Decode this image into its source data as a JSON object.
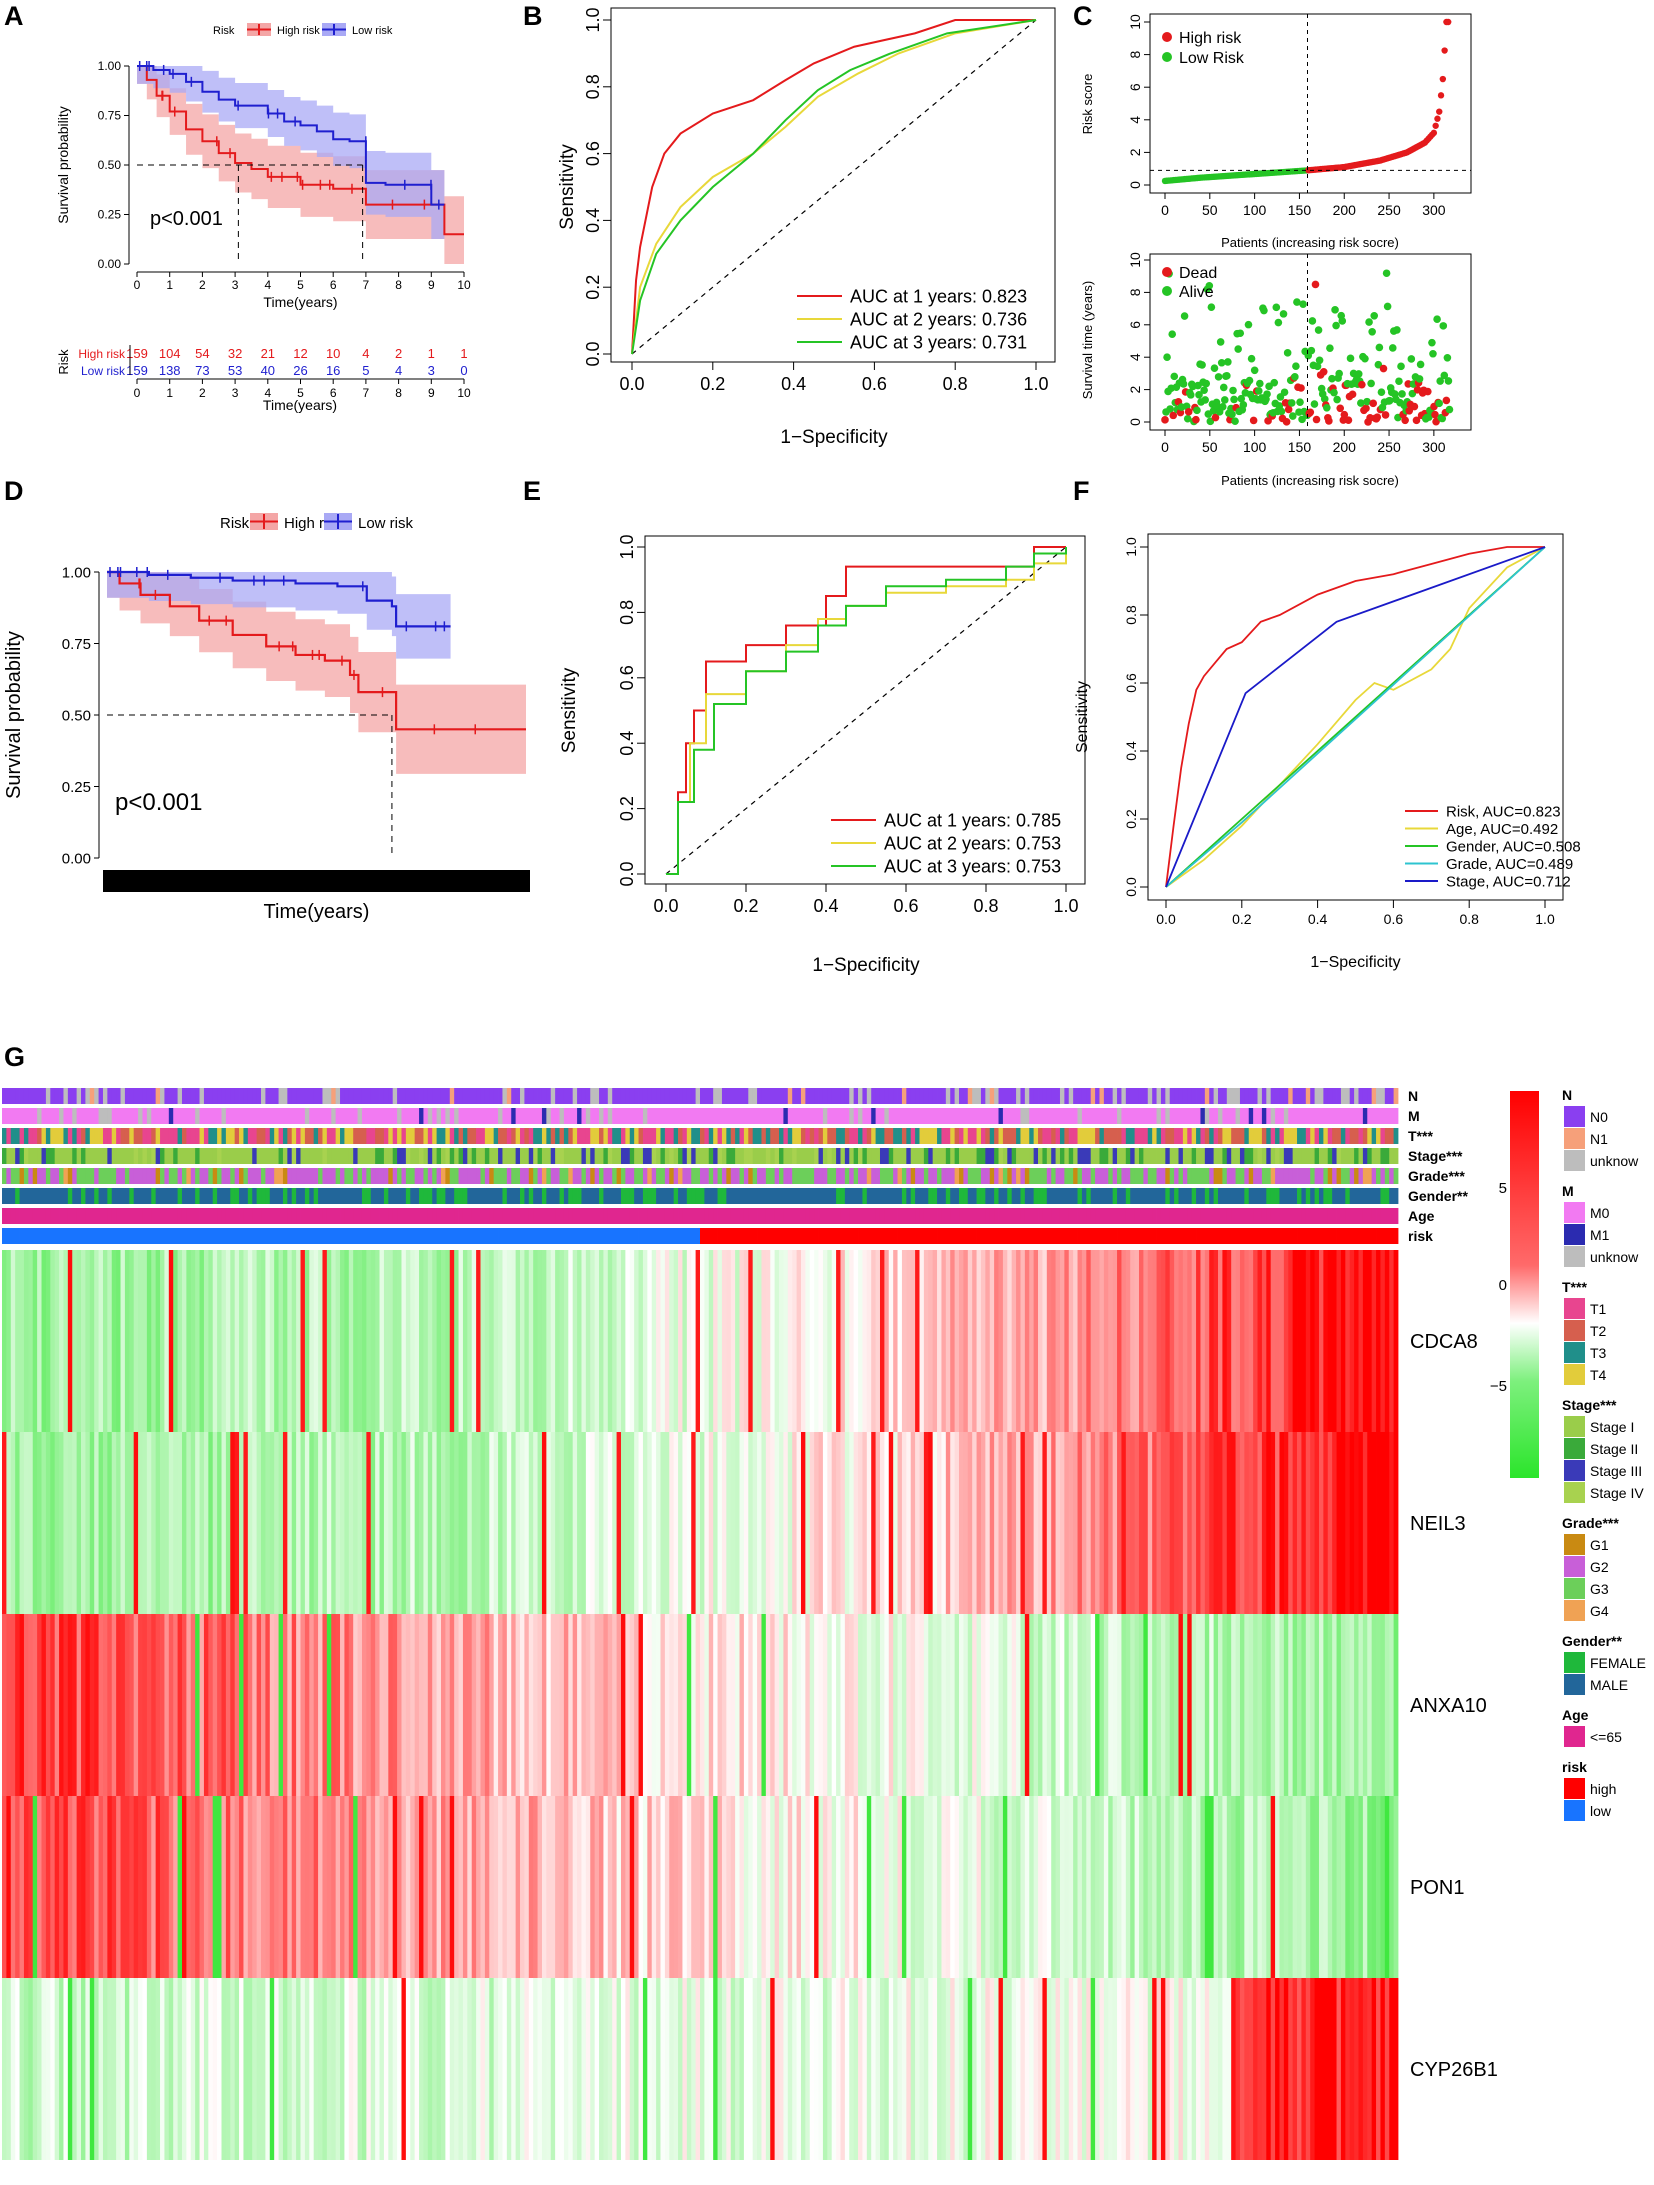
{
  "panels": {
    "A": "A",
    "B": "B",
    "C": "C",
    "D": "D",
    "E": "E",
    "F": "F",
    "G": "G"
  },
  "colors": {
    "high": "#e41a1c",
    "low": "#1f1fcf",
    "high_band": "#f4a6a6",
    "low_band": "#a9a9f5",
    "red": "#e41a1c",
    "yellow": "#e8d83a",
    "green": "#25c425",
    "cyan": "#2ec4d0",
    "blue": "#1a1ac8",
    "heat_high": "#ff0000",
    "heat_mid": "#ffffff",
    "heat_low": "#2be52b"
  },
  "chart_data": [
    {
      "id": "A",
      "type": "line",
      "subtype": "kaplan-meier",
      "legend_title": "Risk",
      "legend": [
        "High risk",
        "Low risk"
      ],
      "xlabel": "Time(years)",
      "ylabel": "Survival probability",
      "x_ticks": [
        "0",
        "1",
        "2",
        "3",
        "4",
        "5",
        "6",
        "7",
        "8",
        "9",
        "10"
      ],
      "y_ticks": [
        "0.00",
        "0.25",
        "0.50",
        "0.75",
        "1.00"
      ],
      "xlim": [
        0,
        10
      ],
      "ylim": [
        0,
        1
      ],
      "annotation": "p<0.001",
      "series": [
        {
          "name": "High risk",
          "x": [
            0,
            0.3,
            0.6,
            1,
            1.5,
            2,
            2.5,
            3,
            3.5,
            4,
            5,
            6,
            7,
            7.5,
            9,
            9.4,
            10
          ],
          "y": [
            1,
            0.93,
            0.85,
            0.77,
            0.68,
            0.62,
            0.56,
            0.51,
            0.48,
            0.44,
            0.4,
            0.38,
            0.3,
            0.3,
            0.3,
            0.15,
            0.15
          ]
        },
        {
          "name": "Low risk",
          "x": [
            0,
            0.5,
            1,
            1.5,
            2,
            2.5,
            3,
            4,
            4.5,
            5,
            5.5,
            6,
            6.5,
            7,
            7.6,
            9,
            9.4
          ],
          "y": [
            1,
            0.98,
            0.96,
            0.92,
            0.87,
            0.83,
            0.8,
            0.76,
            0.72,
            0.7,
            0.67,
            0.63,
            0.62,
            0.41,
            0.4,
            0.3,
            0.3
          ]
        }
      ],
      "median_lines": {
        "y": 0.5,
        "x": [
          3.1,
          6.9
        ]
      },
      "risk_table": {
        "title": "Risk",
        "xlabel": "Time(years)",
        "x_ticks": [
          "0",
          "1",
          "2",
          "3",
          "4",
          "5",
          "6",
          "7",
          "8",
          "9",
          "10"
        ],
        "rows": [
          {
            "label": "High risk",
            "values": [
              "159",
              "104",
              "54",
              "32",
              "21",
              "12",
              "10",
              "4",
              "2",
              "1",
              "1"
            ]
          },
          {
            "label": "Low risk",
            "values": [
              "159",
              "138",
              "73",
              "53",
              "40",
              "26",
              "16",
              "5",
              "4",
              "3",
              "0"
            ]
          }
        ]
      }
    },
    {
      "id": "B",
      "type": "line",
      "subtype": "roc",
      "xlabel": "1−Specificity",
      "ylabel": "Sensitivity",
      "x_ticks": [
        "0.0",
        "0.2",
        "0.4",
        "0.6",
        "0.8",
        "1.0"
      ],
      "y_ticks": [
        "0.0",
        "0.2",
        "0.4",
        "0.6",
        "0.8",
        "1.0"
      ],
      "series": [
        {
          "name": "AUC at 1 years: 0.823",
          "x": [
            0,
            0.01,
            0.02,
            0.05,
            0.08,
            0.12,
            0.2,
            0.3,
            0.38,
            0.45,
            0.55,
            0.7,
            0.8,
            1
          ],
          "y": [
            0,
            0.22,
            0.32,
            0.5,
            0.6,
            0.66,
            0.72,
            0.76,
            0.82,
            0.87,
            0.92,
            0.96,
            1,
            1
          ]
        },
        {
          "name": "AUC at 2 years: 0.736",
          "x": [
            0,
            0.02,
            0.06,
            0.12,
            0.2,
            0.3,
            0.38,
            0.46,
            0.56,
            0.66,
            0.8,
            1
          ],
          "y": [
            0,
            0.2,
            0.33,
            0.44,
            0.53,
            0.6,
            0.68,
            0.77,
            0.84,
            0.9,
            0.96,
            1
          ]
        },
        {
          "name": "AUC at 3 years: 0.731",
          "x": [
            0,
            0.02,
            0.06,
            0.12,
            0.2,
            0.3,
            0.38,
            0.46,
            0.54,
            0.64,
            0.78,
            1
          ],
          "y": [
            0,
            0.16,
            0.3,
            0.4,
            0.5,
            0.6,
            0.7,
            0.79,
            0.85,
            0.9,
            0.96,
            1
          ]
        }
      ]
    },
    {
      "id": "C_top",
      "type": "scatter",
      "xlabel": "Patients (increasing risk socre)",
      "ylabel": "Risk score",
      "x_ticks": [
        "0",
        "50",
        "100",
        "150",
        "200",
        "250",
        "300"
      ],
      "y_ticks": [
        "0",
        "2",
        "4",
        "6",
        "8",
        "10"
      ],
      "xlim": [
        0,
        318
      ],
      "ylim": [
        0,
        10
      ],
      "legend": [
        "High risk",
        "Low Risk"
      ],
      "cutoff_index": 159,
      "cutoff_score": 0.9,
      "curve_points": [
        [
          0,
          0.25
        ],
        [
          40,
          0.45
        ],
        [
          80,
          0.6
        ],
        [
          120,
          0.75
        ],
        [
          159,
          0.9
        ],
        [
          200,
          1.1
        ],
        [
          240,
          1.5
        ],
        [
          270,
          2.0
        ],
        [
          290,
          2.6
        ],
        [
          300,
          3.2
        ],
        [
          306,
          4.5
        ],
        [
          310,
          6.5
        ],
        [
          314,
          10
        ],
        [
          318,
          10
        ]
      ]
    },
    {
      "id": "C_bottom",
      "type": "scatter",
      "xlabel": "Patients (increasing risk socre)",
      "ylabel": "Survival time (years)",
      "x_ticks": [
        "0",
        "50",
        "100",
        "150",
        "200",
        "250",
        "300"
      ],
      "y_ticks": [
        "0",
        "2",
        "4",
        "6",
        "8",
        "10"
      ],
      "xlim": [
        0,
        318
      ],
      "ylim": [
        0,
        10
      ],
      "legend": [
        "Dead",
        "Alive"
      ],
      "cutoff_index": 159
    },
    {
      "id": "D",
      "type": "line",
      "subtype": "kaplan-meier",
      "legend_title": "Risk",
      "legend": [
        "High risk",
        "Low risk"
      ],
      "xlabel": "Time(years)",
      "ylabel": "Survival probability",
      "y_ticks": [
        "0.00",
        "0.25",
        "0.50",
        "0.75",
        "1.00"
      ],
      "ylim": [
        0,
        1
      ],
      "annotation": "p<0.001",
      "series": [
        {
          "name": "High risk",
          "x": [
            0,
            0.03,
            0.08,
            0.15,
            0.22,
            0.3,
            0.38,
            0.45,
            0.52,
            0.58,
            0.6,
            0.68,
            0.69,
            1
          ],
          "y": [
            1,
            0.96,
            0.92,
            0.88,
            0.83,
            0.78,
            0.74,
            0.71,
            0.69,
            0.64,
            0.58,
            0.58,
            0.45,
            0.45
          ]
        },
        {
          "name": "Low risk",
          "x": [
            0,
            0.1,
            0.2,
            0.3,
            0.45,
            0.55,
            0.6,
            0.62,
            0.68,
            0.69,
            0.82
          ],
          "y": [
            1,
            0.99,
            0.98,
            0.97,
            0.96,
            0.95,
            0.95,
            0.9,
            0.88,
            0.81,
            0.81
          ]
        }
      ],
      "median_lines": {
        "y": 0.5,
        "x": [
          0.68
        ]
      }
    },
    {
      "id": "E",
      "type": "line",
      "subtype": "roc",
      "xlabel": "1−Specificity",
      "ylabel": "Sensitivity",
      "x_ticks": [
        "0.0",
        "0.2",
        "0.4",
        "0.6",
        "0.8",
        "1.0"
      ],
      "y_ticks": [
        "0.0",
        "0.2",
        "0.4",
        "0.6",
        "0.8",
        "1.0"
      ],
      "series": [
        {
          "name": "AUC at 1 years: 0.785",
          "x": [
            0,
            0.03,
            0.05,
            0.07,
            0.1,
            0.2,
            0.3,
            0.4,
            0.45,
            0.6,
            0.7,
            0.9,
            0.92,
            1
          ],
          "y": [
            0,
            0.25,
            0.4,
            0.5,
            0.65,
            0.7,
            0.76,
            0.85,
            0.94,
            0.94,
            0.94,
            0.94,
            1,
            1
          ]
        },
        {
          "name": "AUC at 2 years: 0.753",
          "x": [
            0,
            0.03,
            0.06,
            0.1,
            0.2,
            0.3,
            0.38,
            0.45,
            0.55,
            0.7,
            0.85,
            0.92,
            1
          ],
          "y": [
            0,
            0.22,
            0.4,
            0.55,
            0.62,
            0.7,
            0.78,
            0.82,
            0.86,
            0.88,
            0.9,
            0.95,
            1
          ]
        },
        {
          "name": "AUC at 3 years: 0.753",
          "x": [
            0,
            0.03,
            0.07,
            0.12,
            0.2,
            0.3,
            0.38,
            0.45,
            0.55,
            0.7,
            0.85,
            0.92,
            1
          ],
          "y": [
            0,
            0.22,
            0.38,
            0.52,
            0.62,
            0.68,
            0.76,
            0.82,
            0.88,
            0.9,
            0.94,
            0.98,
            1
          ]
        }
      ]
    },
    {
      "id": "F",
      "type": "line",
      "subtype": "roc",
      "xlabel": "1−Specificity",
      "ylabel": "Sensitivity",
      "x_ticks": [
        "0.0",
        "0.2",
        "0.4",
        "0.6",
        "0.8",
        "1.0"
      ],
      "y_ticks": [
        "0.0",
        "0.2",
        "0.4",
        "0.6",
        "0.8",
        "1.0"
      ],
      "series": [
        {
          "name": "Risk, AUC=0.823",
          "x": [
            0,
            0.02,
            0.04,
            0.06,
            0.08,
            0.1,
            0.13,
            0.16,
            0.2,
            0.25,
            0.3,
            0.4,
            0.5,
            0.6,
            0.7,
            0.8,
            0.9,
            1
          ],
          "y": [
            0,
            0.18,
            0.35,
            0.48,
            0.58,
            0.62,
            0.66,
            0.7,
            0.72,
            0.78,
            0.8,
            0.86,
            0.9,
            0.92,
            0.95,
            0.98,
            1,
            1
          ]
        },
        {
          "name": "Age, AUC=0.492",
          "x": [
            0,
            0.1,
            0.2,
            0.3,
            0.4,
            0.5,
            0.55,
            0.6,
            0.7,
            0.75,
            0.8,
            0.9,
            1
          ],
          "y": [
            0,
            0.08,
            0.18,
            0.3,
            0.42,
            0.55,
            0.6,
            0.58,
            0.64,
            0.7,
            0.82,
            0.94,
            1
          ]
        },
        {
          "name": "Gender, AUC=0.508",
          "x": [
            0,
            1
          ],
          "y": [
            0,
            1
          ]
        },
        {
          "name": "Grade, AUC=0.489",
          "x": [
            0,
            0.2,
            1
          ],
          "y": [
            0,
            0.19,
            1
          ]
        },
        {
          "name": "Stage, AUC=0.712",
          "x": [
            0,
            0.21,
            0.45,
            1
          ],
          "y": [
            0,
            0.57,
            0.78,
            1
          ]
        }
      ]
    },
    {
      "id": "G",
      "type": "heatmap",
      "annotation_tracks": [
        "N",
        "M",
        "T***",
        "Stage***",
        "Grade***",
        "Gender**",
        "Age",
        "risk"
      ],
      "genes": [
        "CDCA8",
        "NEIL3",
        "ANXA10",
        "PON1",
        "CYP26B1"
      ],
      "n_samples": 318,
      "scale_ticks": [
        "5",
        "0",
        "−5"
      ],
      "scale_range": [
        -7,
        7
      ],
      "legend_groups": [
        {
          "title": "N",
          "items": [
            {
              "label": "N0",
              "color": "#8a3ff0"
            },
            {
              "label": "N1",
              "color": "#f6a07a"
            },
            {
              "label": "unknow",
              "color": "#bdbdbd"
            }
          ]
        },
        {
          "title": "M",
          "items": [
            {
              "label": "M0",
              "color": "#f27af2"
            },
            {
              "label": "M1",
              "color": "#2b2bb0"
            },
            {
              "label": "unknow",
              "color": "#bdbdbd"
            }
          ]
        },
        {
          "title": "T***",
          "items": [
            {
              "label": "T1",
              "color": "#e8458f"
            },
            {
              "label": "T2",
              "color": "#d65f4e"
            },
            {
              "label": "T3",
              "color": "#208f8a"
            },
            {
              "label": "T4",
              "color": "#e2cc3b"
            }
          ]
        },
        {
          "title": "Stage***",
          "items": [
            {
              "label": "Stage I",
              "color": "#9acd4a"
            },
            {
              "label": "Stage II",
              "color": "#3aaa3a"
            },
            {
              "label": "Stage III",
              "color": "#3a3ab8"
            },
            {
              "label": "Stage IV",
              "color": "#a8d24f"
            }
          ]
        },
        {
          "title": "Grade***",
          "items": [
            {
              "label": "G1",
              "color": "#c98a12"
            },
            {
              "label": "G2",
              "color": "#c85fd8"
            },
            {
              "label": "G3",
              "color": "#6ccf5a"
            },
            {
              "label": "G4",
              "color": "#f0a254"
            }
          ]
        },
        {
          "title": "Gender**",
          "items": [
            {
              "label": "FEMALE",
              "color": "#1fb83b"
            },
            {
              "label": "MALE",
              "color": "#22669a"
            }
          ]
        },
        {
          "title": "Age",
          "items": [
            {
              "label": "<=65",
              "color": "#e0268f"
            }
          ]
        },
        {
          "title": "risk",
          "items": [
            {
              "label": "high",
              "color": "#ff0000"
            },
            {
              "label": "low",
              "color": "#1874ff"
            }
          ]
        }
      ]
    }
  ]
}
